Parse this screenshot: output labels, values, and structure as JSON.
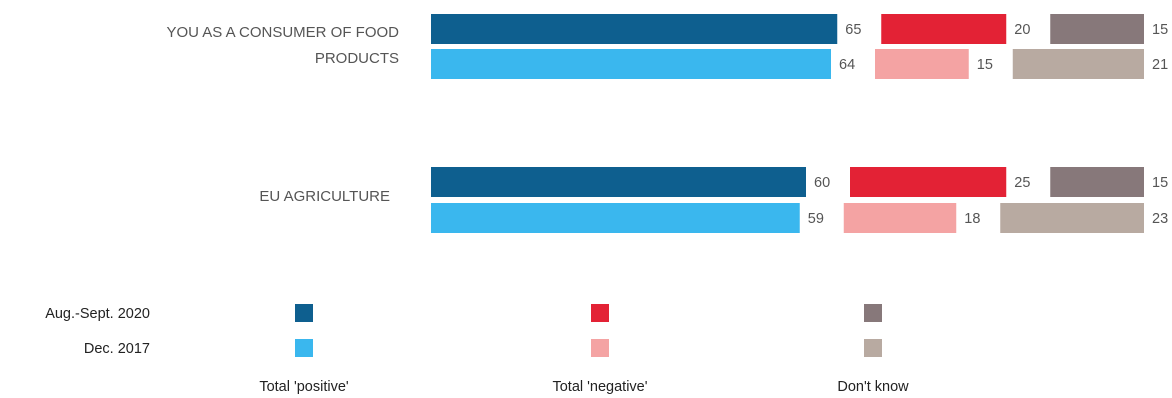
{
  "chart_data": {
    "type": "bar",
    "orientation": "horizontal",
    "stacked": true,
    "categories": [
      "YOU AS A CONSUMER OF FOOD PRODUCTS",
      "EU AGRICULTURE"
    ],
    "periods": [
      "Aug.-Sept. 2020",
      "Dec. 2017"
    ],
    "responses": [
      "Total 'positive'",
      "Total 'negative'",
      "Don't know"
    ],
    "series": [
      {
        "name": "Total 'positive'",
        "period": "Aug.-Sept. 2020",
        "color": "#0e5f8f",
        "values": [
          65,
          60
        ]
      },
      {
        "name": "Total 'positive'",
        "period": "Dec. 2017",
        "color": "#3ab7ee",
        "values": [
          64,
          59
        ]
      },
      {
        "name": "Total 'negative'",
        "period": "Aug.-Sept. 2020",
        "color": "#e32235",
        "values": [
          20,
          25
        ]
      },
      {
        "name": "Total 'negative'",
        "period": "Dec. 2017",
        "color": "#f4a3a3",
        "values": [
          15,
          18
        ]
      },
      {
        "name": "Don't know",
        "period": "Aug.-Sept. 2020",
        "color": "#87787a",
        "values": [
          15,
          15
        ]
      },
      {
        "name": "Don't know",
        "period": "Dec. 2017",
        "color": "#b8aaa1",
        "values": [
          21,
          23
        ]
      }
    ],
    "legend_position": "bottom",
    "grid": false
  }
}
